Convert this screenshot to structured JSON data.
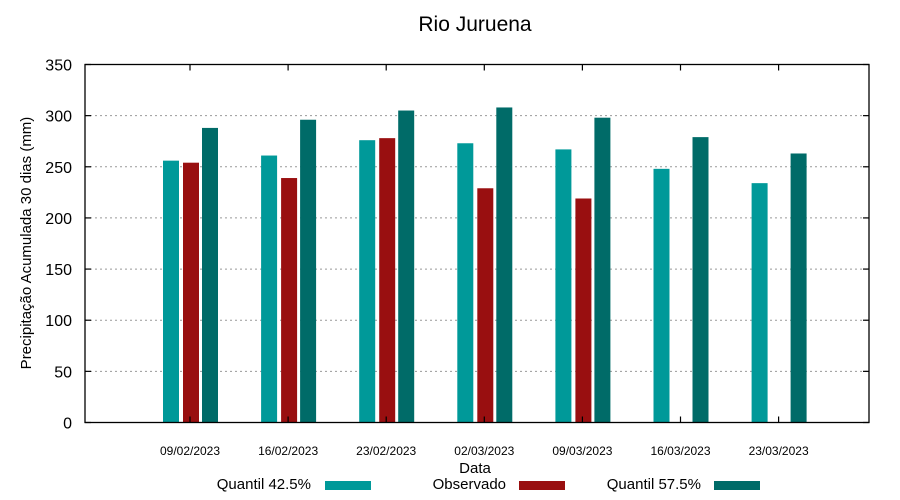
{
  "chart_data": {
    "type": "bar",
    "title": "Rio Juruena",
    "xlabel": "Data",
    "ylabel": "Precipitação Acumulada 30 dias (mm)",
    "ylim": [
      0,
      350
    ],
    "yticks": [
      0,
      50,
      100,
      150,
      200,
      250,
      300,
      350
    ],
    "grid": "horizontal dotted",
    "legend_position": "bottom",
    "categories": [
      "09/02/2023",
      "16/02/2023",
      "23/02/2023",
      "02/03/2023",
      "09/03/2023",
      "16/03/2023",
      "23/03/2023"
    ],
    "series": [
      {
        "name": "Quantil 42.5%",
        "color": "#009999",
        "values": [
          256,
          261,
          276,
          273,
          267,
          248,
          234
        ]
      },
      {
        "name": "Observado",
        "color": "#990f10",
        "values": [
          254,
          239,
          278,
          229,
          219,
          null,
          null
        ]
      },
      {
        "name": "Quantil 57.5%",
        "color": "#006b68",
        "values": [
          288,
          296,
          305,
          308,
          298,
          279,
          263
        ]
      }
    ]
  }
}
